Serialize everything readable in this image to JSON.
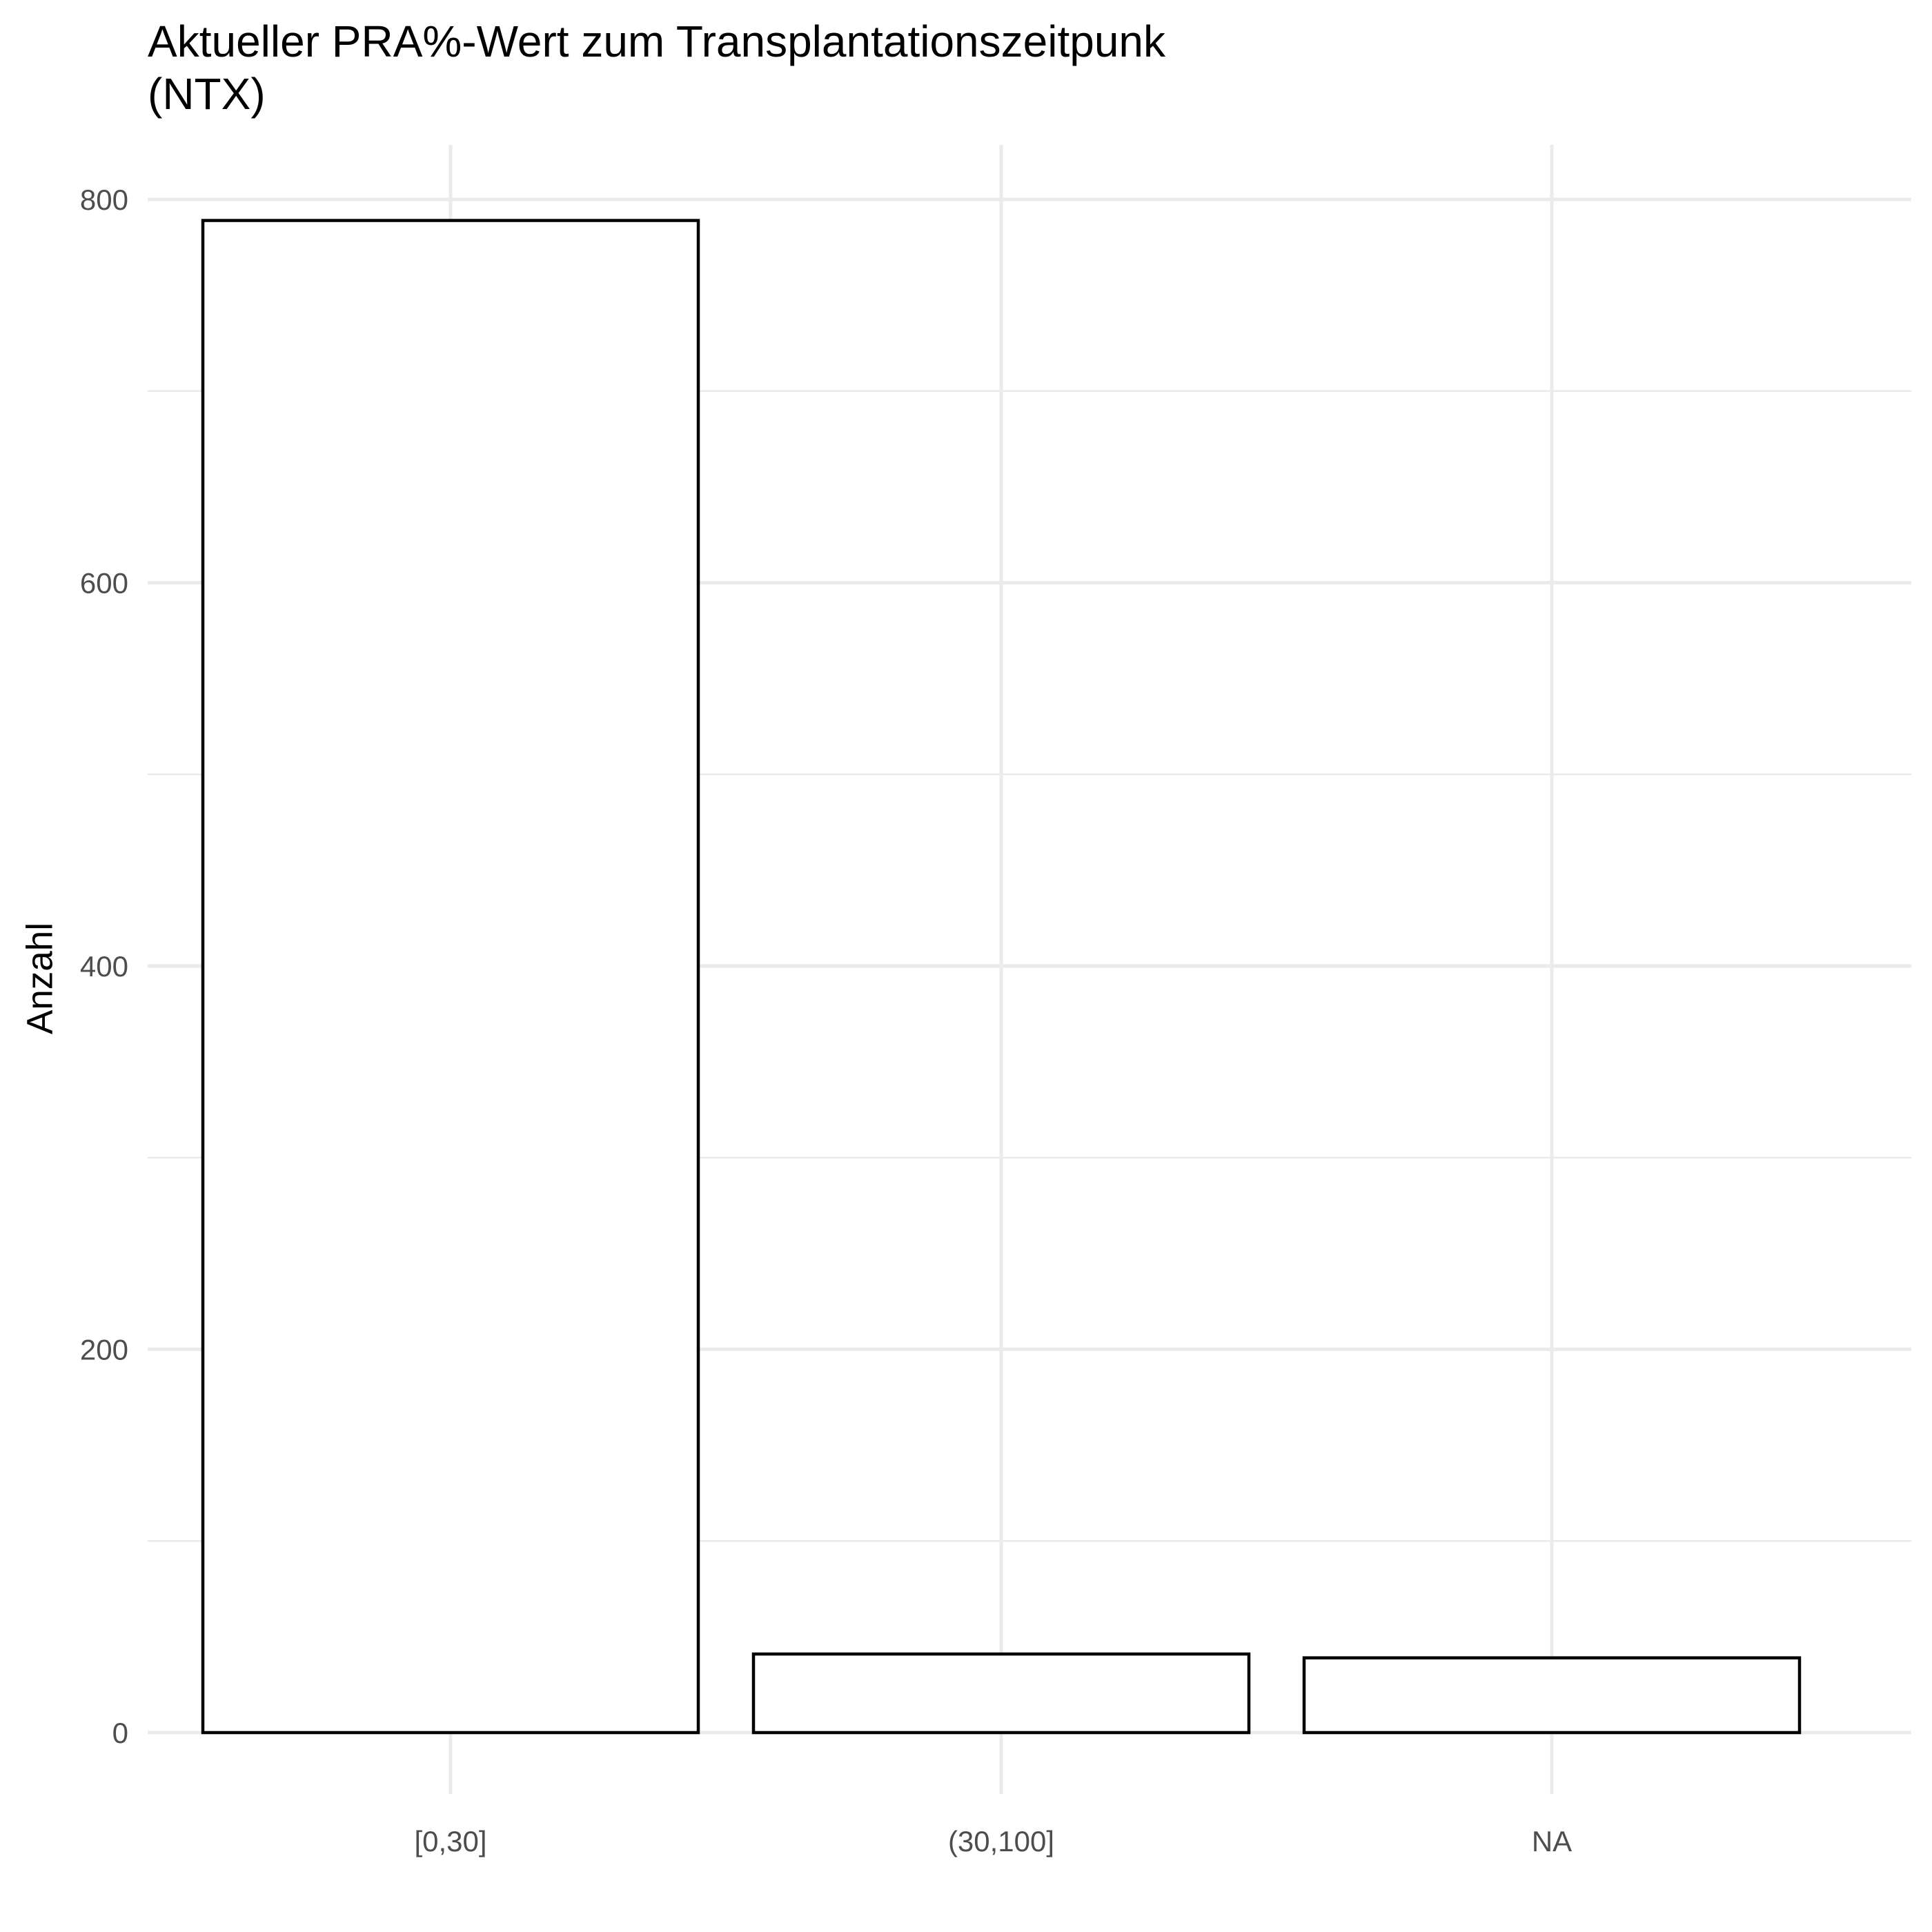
{
  "chart_data": {
    "type": "bar",
    "title_lines": [
      "Aktueller PRA%-Wert zum Transplantationszeitpunk",
      "(NTX)"
    ],
    "xlabel": "",
    "ylabel": "Anzahl",
    "categories": [
      "[0,30]",
      "(30,100]",
      "NA"
    ],
    "values": [
      789,
      41,
      39
    ],
    "ylim": [
      0,
      800
    ],
    "yticks": [
      0,
      200,
      400,
      600,
      800
    ],
    "grid": true,
    "bar_fill": "#ffffff",
    "bar_stroke": "#000000",
    "grid_color": "#ebebeb"
  }
}
